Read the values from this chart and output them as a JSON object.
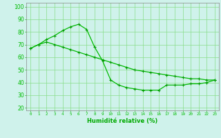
{
  "line1_x": [
    0,
    1,
    2,
    3,
    4,
    5,
    6,
    7,
    8,
    9,
    10,
    11,
    12,
    13,
    14,
    15,
    16,
    17,
    18,
    19,
    20,
    21,
    22,
    23
  ],
  "line1_y": [
    67,
    70,
    74,
    77,
    81,
    84,
    86,
    82,
    68,
    57,
    42,
    38,
    36,
    35,
    34,
    34,
    34,
    38,
    38,
    38,
    39,
    39,
    40,
    42
  ],
  "line2_x": [
    0,
    1,
    2,
    3,
    4,
    5,
    6,
    7,
    8,
    9,
    10,
    11,
    12,
    13,
    14,
    15,
    16,
    17,
    18,
    19,
    20,
    21,
    22,
    23
  ],
  "line2_y": [
    67,
    70,
    72,
    70,
    68,
    66,
    64,
    62,
    60,
    58,
    56,
    54,
    52,
    50,
    49,
    48,
    47,
    46,
    45,
    44,
    43,
    43,
    42,
    42
  ],
  "line_color": "#00bb00",
  "marker_color": "#009900",
  "bg_color": "#cff2eb",
  "grid_color": "#88dd88",
  "xlabel": "Humidité relative (%)",
  "xlabel_color": "#00aa00",
  "ylabel_vals": [
    20,
    30,
    40,
    50,
    60,
    70,
    80,
    90,
    100
  ],
  "xlim": [
    -0.5,
    23.5
  ],
  "ylim": [
    18,
    103
  ],
  "marker": "+",
  "markersize": 3.0,
  "linewidth": 0.9
}
